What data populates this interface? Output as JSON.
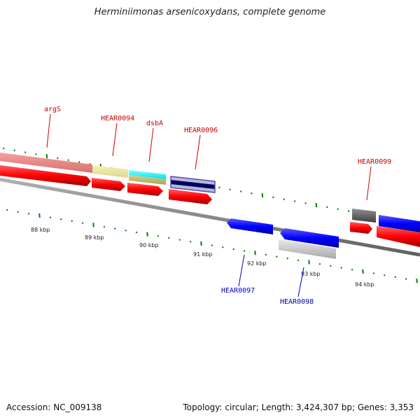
{
  "title": "Herminiimonas arsenicoxydans, complete genome",
  "footer": {
    "accession": "Accession: NC_009138",
    "summary": "Topology: circular; Length: 3,424,307 bp; Genes: 3,353"
  },
  "kbp_labels": [
    "88 kbp",
    "89 kbp",
    "90 kbp",
    "91 kbp",
    "92 kbp",
    "93 kbp",
    "94 kbp"
  ],
  "gene_labels": [
    {
      "text": "argS",
      "strand": "forward"
    },
    {
      "text": "HEAR0094",
      "strand": "forward"
    },
    {
      "text": "dsbA",
      "strand": "forward"
    },
    {
      "text": "HEAR0096",
      "strand": "forward"
    },
    {
      "text": "HEAR0097",
      "strand": "reverse"
    },
    {
      "text": "HEAR0098",
      "strand": "reverse"
    },
    {
      "text": "HEAR0099",
      "strand": "forward"
    }
  ],
  "colors": {
    "forward_label": "#cc0000",
    "reverse_label": "#0000bb",
    "cds": "#ff0000",
    "reverse_gene": "#0000ff",
    "backbone": "#808080",
    "tick": "#008000"
  }
}
